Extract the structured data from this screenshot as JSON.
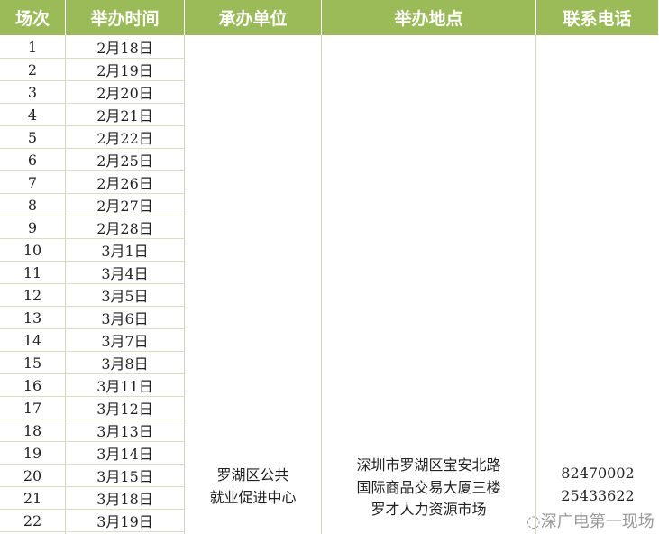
{
  "headers": [
    "场次",
    "举办时间",
    "承办单位",
    "举办地点",
    "联系电话"
  ],
  "rows": [
    [
      "1",
      "2月18日"
    ],
    [
      "2",
      "2月19日"
    ],
    [
      "3",
      "2月20日"
    ],
    [
      "4",
      "2月21日"
    ],
    [
      "5",
      "2月22日"
    ],
    [
      "6",
      "2月25日"
    ],
    [
      "7",
      "2月26日"
    ],
    [
      "8",
      "2月27日"
    ],
    [
      "9",
      "2月28日"
    ],
    [
      "10",
      "3月1日"
    ],
    [
      "11",
      "3月4日"
    ],
    [
      "12",
      "3月5日"
    ],
    [
      "13",
      "3月6日"
    ],
    [
      "14",
      "3月7日"
    ],
    [
      "15",
      "3月8日"
    ],
    [
      "16",
      "3月11日"
    ],
    [
      "17",
      "3月12日"
    ],
    [
      "18",
      "3月13日"
    ],
    [
      "19",
      "3月14日"
    ],
    [
      "20",
      "3月15日"
    ],
    [
      "21",
      "3月18日"
    ],
    [
      "22",
      "3月19日"
    ]
  ],
  "organizer": [
    "罗湖区公共",
    "就业促进中心"
  ],
  "venue": [
    "深圳市罗湖区宝安北路",
    "国际商品交易大厦三楼",
    "罗才人力资源市场"
  ],
  "phones": [
    "82470002",
    "25433622"
  ],
  "watermark": "深广电第一现场",
  "colors": {
    "header_bg": "#9bbb59",
    "header_text": "#ffffff"
  }
}
